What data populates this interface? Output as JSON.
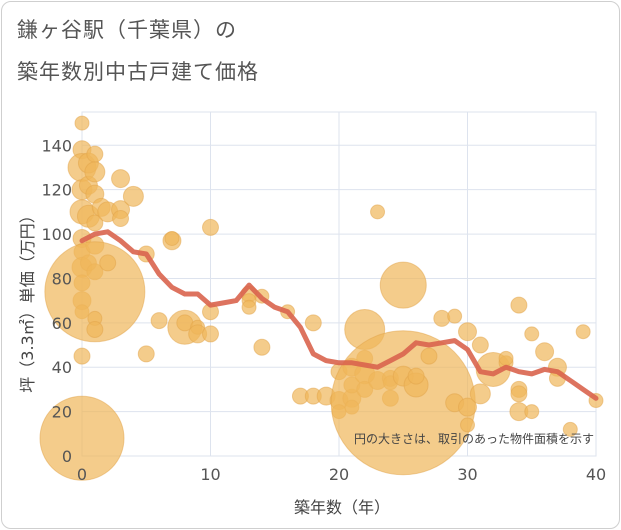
{
  "title_line1": "鎌ヶ谷駅（千葉県）の",
  "title_line2": "築年数別中古戸建て価格",
  "chart_data": {
    "type": "scatter",
    "title": "鎌ヶ谷駅（千葉県）の 築年数別中古戸建て価格",
    "xlabel": "築年数（年）",
    "ylabel": "坪（3.3㎡）単価（万円）",
    "xlim": [
      0,
      40
    ],
    "ylim": [
      0,
      155
    ],
    "xticks": [
      0,
      10,
      20,
      30,
      40
    ],
    "yticks": [
      0,
      20,
      40,
      60,
      80,
      100,
      120,
      140
    ],
    "annotation": "円の大きさは、取引のあった物件面積を示す",
    "colors": {
      "bubble": "#f0b65a",
      "line": "#d9644e",
      "grid": "#dde3ee"
    },
    "bubbles": [
      [
        0,
        150,
        7
      ],
      [
        0,
        138,
        9
      ],
      [
        0,
        130,
        14
      ],
      [
        0,
        120,
        10
      ],
      [
        0,
        110,
        12
      ],
      [
        0,
        98,
        9
      ],
      [
        0,
        92,
        8
      ],
      [
        0,
        85,
        10
      ],
      [
        0,
        78,
        8
      ],
      [
        0,
        70,
        9
      ],
      [
        0,
        65,
        7
      ],
      [
        0,
        45,
        8
      ],
      [
        0,
        8,
        42
      ],
      [
        0.5,
        132,
        10
      ],
      [
        0.5,
        122,
        9
      ],
      [
        0.5,
        108,
        11
      ],
      [
        0.5,
        87,
        8
      ],
      [
        1,
        136,
        8
      ],
      [
        1,
        128,
        10
      ],
      [
        1,
        118,
        9
      ],
      [
        1,
        105,
        8
      ],
      [
        1,
        95,
        9
      ],
      [
        1,
        83,
        8
      ],
      [
        1,
        74,
        50
      ],
      [
        1,
        62,
        7
      ],
      [
        1,
        57,
        8
      ],
      [
        1.5,
        112,
        9
      ],
      [
        2,
        110,
        10
      ],
      [
        2,
        87,
        8
      ],
      [
        3,
        125,
        9
      ],
      [
        3,
        111,
        9
      ],
      [
        3,
        107,
        8
      ],
      [
        4,
        117,
        10
      ],
      [
        5,
        91,
        8
      ],
      [
        5,
        46,
        8
      ],
      [
        6,
        61,
        8
      ],
      [
        7,
        97,
        9
      ],
      [
        7,
        98,
        7
      ],
      [
        8,
        58,
        17
      ],
      [
        8,
        60,
        8
      ],
      [
        9,
        58,
        7
      ],
      [
        9,
        55,
        9
      ],
      [
        10,
        103,
        8
      ],
      [
        10,
        65,
        8
      ],
      [
        10,
        55,
        8
      ],
      [
        13,
        73,
        8
      ],
      [
        13,
        70,
        7
      ],
      [
        13,
        67,
        7
      ],
      [
        14,
        72,
        7
      ],
      [
        14,
        49,
        8
      ],
      [
        16,
        65,
        7
      ],
      [
        17,
        27,
        8
      ],
      [
        18,
        60,
        8
      ],
      [
        18,
        27,
        8
      ],
      [
        19,
        27,
        9
      ],
      [
        20,
        38,
        8
      ],
      [
        20,
        25,
        9
      ],
      [
        20,
        20,
        7
      ],
      [
        21,
        40,
        9
      ],
      [
        21,
        26,
        9
      ],
      [
        21,
        22,
        7
      ],
      [
        21,
        32,
        8
      ],
      [
        22,
        57,
        20
      ],
      [
        22,
        44,
        8
      ],
      [
        22,
        37,
        10
      ],
      [
        22,
        30,
        8
      ],
      [
        23,
        110,
        7
      ],
      [
        23,
        34,
        9
      ],
      [
        24,
        35,
        8
      ],
      [
        24,
        26,
        8
      ],
      [
        24,
        33,
        7
      ],
      [
        25,
        77,
        23
      ],
      [
        25,
        24,
        72
      ],
      [
        25,
        36,
        10
      ],
      [
        26,
        32,
        12
      ],
      [
        26,
        36,
        8
      ],
      [
        27,
        45,
        8
      ],
      [
        28,
        62,
        8
      ],
      [
        29,
        63,
        7
      ],
      [
        29,
        24,
        9
      ],
      [
        30,
        56,
        9
      ],
      [
        30,
        22,
        9
      ],
      [
        30,
        14,
        7
      ],
      [
        31,
        50,
        8
      ],
      [
        31,
        28,
        10
      ],
      [
        32,
        39,
        17
      ],
      [
        33,
        42,
        7
      ],
      [
        33,
        44,
        7
      ],
      [
        34,
        68,
        8
      ],
      [
        34,
        30,
        8
      ],
      [
        34,
        28,
        8
      ],
      [
        34,
        20,
        9
      ],
      [
        35,
        55,
        7
      ],
      [
        35,
        20,
        7
      ],
      [
        36,
        47,
        9
      ],
      [
        37,
        40,
        9
      ],
      [
        37,
        35,
        8
      ],
      [
        38,
        12,
        7
      ],
      [
        39,
        56,
        7
      ],
      [
        40,
        25,
        7
      ]
    ],
    "trend_line": {
      "x": [
        0,
        1,
        2,
        3,
        4,
        5,
        6,
        7,
        8,
        9,
        10,
        11,
        12,
        13,
        14,
        15,
        16,
        17,
        18,
        19,
        20,
        21,
        22,
        23,
        24,
        25,
        26,
        27,
        28,
        29,
        30,
        31,
        32,
        33,
        34,
        35,
        36,
        37,
        38,
        39,
        40
      ],
      "y": [
        97,
        100,
        101,
        97,
        92,
        91,
        82,
        76,
        73,
        73,
        68,
        69,
        70,
        77,
        71,
        67,
        65,
        58,
        46,
        43,
        42,
        42,
        41,
        40,
        43,
        46,
        51,
        50,
        51,
        52,
        48,
        38,
        37,
        40,
        38,
        37,
        39,
        38,
        34,
        30,
        26
      ]
    }
  }
}
